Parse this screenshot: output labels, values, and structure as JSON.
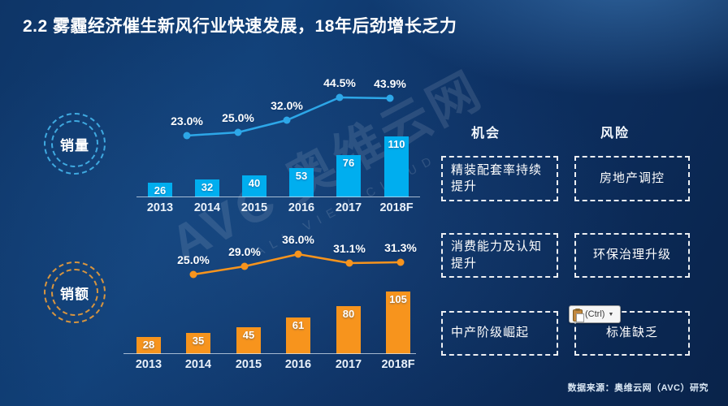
{
  "slide": {
    "title": "2.2  雾霾经济催生新风行业快速发展，18年后劲增长乏力",
    "source": "数据来源：奥维云网（AVC）研究",
    "watermark": {
      "brand": "AVC 奥维云网",
      "subtext": "ALL VIEW CLOUD"
    }
  },
  "chart_data": [
    {
      "type": "bar+line",
      "name": "销量",
      "categories": [
        "2013",
        "2014",
        "2015",
        "2016",
        "2017",
        "2018F"
      ],
      "bar_values": [
        26,
        32,
        40,
        53,
        76,
        110
      ],
      "line_categories": [
        "2014",
        "2015",
        "2016",
        "2017",
        "2018F"
      ],
      "line_values_pct": [
        23.0,
        25.0,
        32.0,
        44.5,
        43.9
      ],
      "bar_color": "#00aeef",
      "line_color": "#2da7e8",
      "legend_position": "left-badge",
      "grid": false
    },
    {
      "type": "bar+line",
      "name": "销额",
      "categories": [
        "2013",
        "2014",
        "2015",
        "2016",
        "2017",
        "2018F"
      ],
      "bar_values": [
        28,
        35,
        45,
        61,
        80,
        105
      ],
      "line_categories": [
        "2014",
        "2015",
        "2016",
        "2017",
        "2018F"
      ],
      "line_values_pct": [
        25.0,
        29.0,
        36.0,
        31.1,
        31.3
      ],
      "bar_color": "#f7941d",
      "line_color": "#f7941d",
      "legend_position": "left-badge",
      "grid": false
    }
  ],
  "panel": {
    "columns": [
      {
        "header": "机会",
        "items": [
          "精装配套率持续提升",
          "消费能力及认知提升",
          "中产阶级崛起"
        ]
      },
      {
        "header": "风险",
        "items": [
          "房地产调控",
          "环保治理升级",
          "标准缺乏"
        ]
      }
    ]
  },
  "paste_button": {
    "label": "(Ctrl)",
    "caret": "▼"
  },
  "colors": {
    "background_dark": "#09234a",
    "background_light": "#2a6ca8",
    "volume_accent": "#00aeef",
    "revenue_accent": "#f7941d",
    "text": "#ffffff"
  }
}
